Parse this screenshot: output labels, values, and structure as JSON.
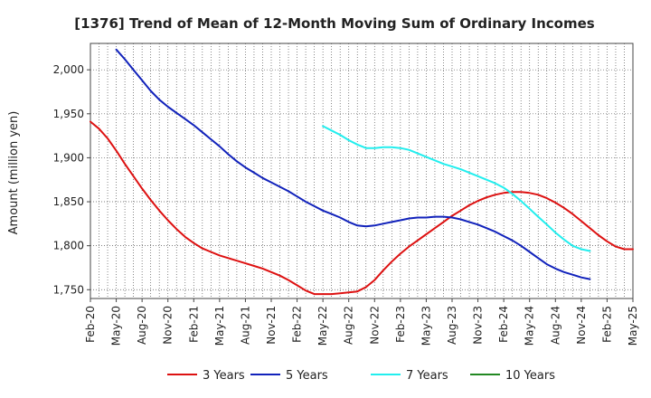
{
  "chart_data": {
    "type": "line",
    "title": "[1376]  Trend of Mean of 12-Month Moving Sum of Ordinary Incomes",
    "xlabel": "",
    "ylabel": "Amount (million yen)",
    "ylim": [
      1740,
      2030
    ],
    "yticks": [
      1750,
      1800,
      1850,
      1900,
      1950,
      2000
    ],
    "ytick_labels": [
      "1,750",
      "1,800",
      "1,850",
      "1,900",
      "1,950",
      "2,000"
    ],
    "x_tick_labels": [
      "Feb-20",
      "May-20",
      "Aug-20",
      "Nov-20",
      "Feb-21",
      "May-21",
      "Aug-21",
      "Nov-21",
      "Feb-22",
      "May-22",
      "Aug-22",
      "Nov-22",
      "Feb-23",
      "May-23",
      "Aug-23",
      "Nov-23",
      "Feb-24",
      "May-24",
      "Aug-24",
      "Nov-24",
      "Feb-25",
      "May-25"
    ],
    "grid": true,
    "legend_position": "bottom",
    "series": [
      {
        "name": "3 Years",
        "color": "#dd1111",
        "start_index": 0,
        "values": [
          1941,
          1933,
          1922,
          1908,
          1893,
          1879,
          1865,
          1852,
          1840,
          1829,
          1819,
          1810,
          1803,
          1797,
          1793,
          1789,
          1786,
          1783,
          1780,
          1777,
          1774,
          1770,
          1766,
          1761,
          1755,
          1749,
          1745,
          1745,
          1745,
          1746,
          1747,
          1748,
          1753,
          1761,
          1772,
          1782,
          1791,
          1799,
          1806,
          1813,
          1820,
          1827,
          1834,
          1840,
          1846,
          1851,
          1855,
          1858,
          1860,
          1861,
          1861,
          1860,
          1858,
          1854,
          1849,
          1843,
          1836,
          1828,
          1820,
          1812,
          1805,
          1799,
          1796,
          1796
        ]
      },
      {
        "name": "5 Years",
        "color": "#1122bb",
        "start_index": 3,
        "values": [
          2023,
          2012,
          2000,
          1988,
          1976,
          1966,
          1958,
          1951,
          1944,
          1937,
          1929,
          1921,
          1913,
          1904,
          1896,
          1889,
          1883,
          1877,
          1872,
          1867,
          1862,
          1856,
          1850,
          1845,
          1840,
          1836,
          1832,
          1827,
          1823,
          1822,
          1823,
          1825,
          1827,
          1829,
          1831,
          1832,
          1832,
          1833,
          1833,
          1832,
          1830,
          1827,
          1824,
          1820,
          1816,
          1811,
          1806,
          1800,
          1793,
          1786,
          1779,
          1774,
          1770,
          1767,
          1764,
          1762
        ]
      },
      {
        "name": "7 Years",
        "color": "#22eeee",
        "start_index": 27,
        "values": [
          1936,
          1931,
          1926,
          1920,
          1915,
          1911,
          1911,
          1912,
          1912,
          1911,
          1909,
          1905,
          1901,
          1897,
          1893,
          1890,
          1887,
          1883,
          1879,
          1875,
          1871,
          1866,
          1859,
          1851,
          1842,
          1833,
          1824,
          1815,
          1807,
          1800,
          1796,
          1794
        ]
      },
      {
        "name": "10 Years",
        "color": "#228822",
        "start_index": 0,
        "values": []
      }
    ]
  }
}
